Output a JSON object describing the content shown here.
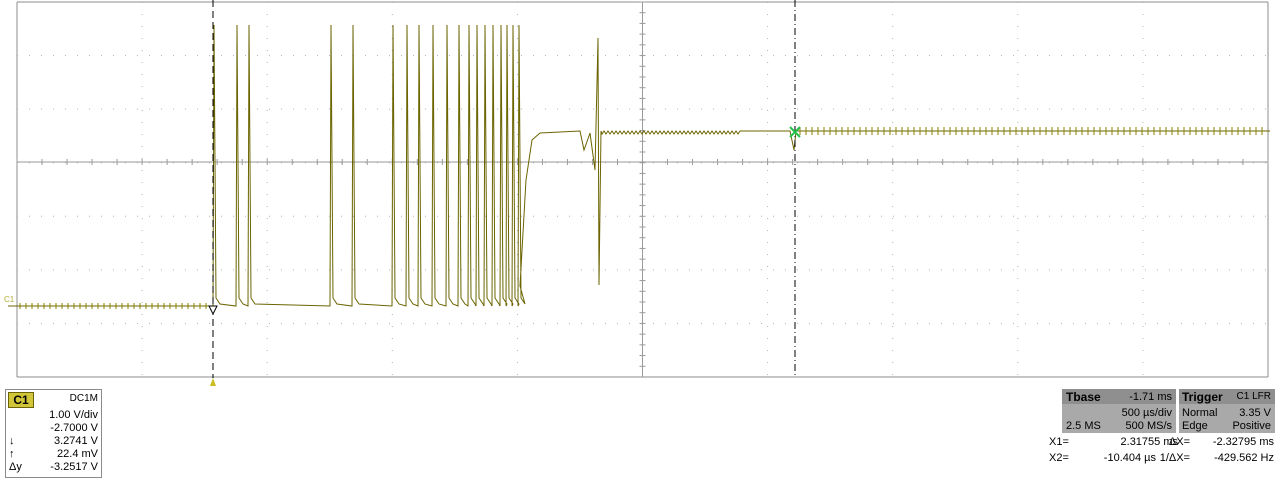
{
  "scope": {
    "trace_color": "#6b6400",
    "grid_color": "#a0a0a0",
    "channel_marker": "C1"
  },
  "channel": {
    "name": "C1",
    "coupling": "DC1M",
    "vdiv": "1.00 V/div",
    "offset": "-2.7000 V",
    "cursor1_label": "↓",
    "cursor1_value": "3.2741 V",
    "cursor2_label": "↑",
    "cursor2_value": "22.4 mV",
    "delta_label": "Δy",
    "delta_value": "-3.2517 V"
  },
  "tbase": {
    "title": "Tbase",
    "delay": "-1.71 ms",
    "timediv": "500 µs/div",
    "samples": "2.5 MS",
    "rate": "500 MS/s"
  },
  "trigger": {
    "title": "Trigger",
    "source": "C1 LFR",
    "mode": "Normal",
    "level": "3.35 V",
    "type": "Edge",
    "slope": "Positive"
  },
  "cursors": {
    "x1_label": "X1=",
    "x1_value": "2.31755 ms",
    "dx_label": "ΔX=",
    "dx_value": "-2.32795 ms",
    "x2_label": "X2=",
    "x2_value": "-10.404 µs",
    "inv_label": "1/ΔX=",
    "inv_value": "-429.562 Hz"
  }
}
